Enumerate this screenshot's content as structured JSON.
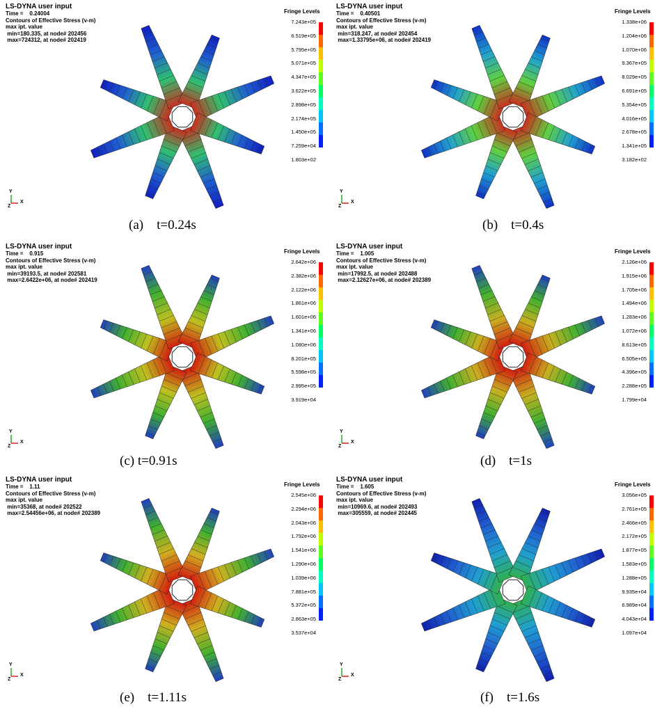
{
  "panels": [
    {
      "lines": [
        "LS-DYNA user input",
        "Time =    0.24004",
        "Contours of Effective Stress (v-m)",
        "max ipt. value",
        " min=180.335, at node# 202456",
        " max=724312, at node# 202419"
      ],
      "fringe_title": "Fringe Levels",
      "levels": [
        "7.243e+05",
        "6.519e+05",
        "5.795e+05",
        "5.071e+05",
        "4.347e+05",
        "3.622e+05",
        "2.898e+05",
        "2.174e+05",
        "1.450e+05",
        "7.259e+04",
        "1.803e+02"
      ],
      "triad": [
        "Y",
        "X",
        "Z"
      ],
      "caption": "(a)    t=0.24s"
    },
    {
      "lines": [
        "LS-DYNA user input",
        "Time =    0.40501",
        "Contours of Effective Stress (v-m)",
        "max ipt. value",
        " min=318.247, at node# 202454",
        " max=1.33795e+06, at node# 202419"
      ],
      "fringe_title": "Fringe Levels",
      "levels": [
        "1.338e+06",
        "1.204e+06",
        "1.070e+06",
        "9.367e+05",
        "8.029e+05",
        "6.691e+05",
        "5.354e+05",
        "4.016e+05",
        "2.678e+05",
        "1.341e+05",
        "3.182e+02"
      ],
      "triad": [
        "Y",
        "X",
        "Z"
      ],
      "caption": "(b)    t=0.4s"
    },
    {
      "lines": [
        "LS-DYNA user input",
        "Time =    0.915",
        "Contours of Effective Stress (v-m)",
        "max ipt. value",
        " min=39193.5, at node# 202581",
        " max=2.6422e+06, at node# 202419"
      ],
      "fringe_title": "Fringe Levels",
      "levels": [
        "2.642e+06",
        "2.382e+06",
        "2.122e+06",
        "1.861e+06",
        "1.601e+06",
        "1.341e+06",
        "1.080e+06",
        "8.201e+05",
        "5.598e+05",
        "2.995e+05",
        "3.919e+04"
      ],
      "triad": [
        "Y",
        "X",
        "Z"
      ],
      "caption": "(c) t=0.91s"
    },
    {
      "lines": [
        "LS-DYNA user input",
        "Time =    1.005",
        "Contours of Effective Stress (v-m)",
        "max ipt. value",
        " min=17992.5, at node# 202488",
        " max=2.12627e+06, at node# 202389"
      ],
      "fringe_title": "Fringe Levels",
      "levels": [
        "2.126e+06",
        "1.915e+06",
        "1.705e+06",
        "1.494e+06",
        "1.283e+06",
        "1.072e+06",
        "8.613e+05",
        "6.505e+05",
        "4.396e+05",
        "2.288e+05",
        "1.799e+04"
      ],
      "triad": [
        "Y",
        "X",
        "Z"
      ],
      "caption": "(d)    t=1s"
    },
    {
      "lines": [
        "LS-DYNA user input",
        "Time =    1.11",
        "Contours of Effective Stress (v-m)",
        "max ipt. value",
        " min=35368, at node# 202522",
        " max=2.54456e+06, at node# 202389"
      ],
      "fringe_title": "Fringe Levels",
      "levels": [
        "2.545e+06",
        "2.294e+06",
        "2.043e+06",
        "1.792e+06",
        "1.541e+06",
        "1.290e+06",
        "1.039e+06",
        "7.881e+05",
        "5.372e+05",
        "2.863e+05",
        "3.537e+04"
      ],
      "triad": [
        "Y",
        "X",
        "Z"
      ],
      "caption": "(e)    t=1.11s"
    },
    {
      "lines": [
        "LS-DYNA user input",
        "Time =    1.605",
        "Contours of Effective Stress (v-m)",
        "max ipt. value",
        " min=10969.6, at node# 202493",
        " max=305559, at node# 202445"
      ],
      "fringe_title": "Fringe Levels",
      "levels": [
        "3.056e+05",
        "2.761e+05",
        "2.466e+05",
        "2.172e+05",
        "1.877e+05",
        "1.583e+05",
        "1.288e+05",
        "9.935e+04",
        "6.989e+04",
        "4.043e+04",
        "1.097e+04"
      ],
      "triad": [
        "Y",
        "X",
        "Z"
      ],
      "caption": "(f)    t=1.6s"
    }
  ]
}
